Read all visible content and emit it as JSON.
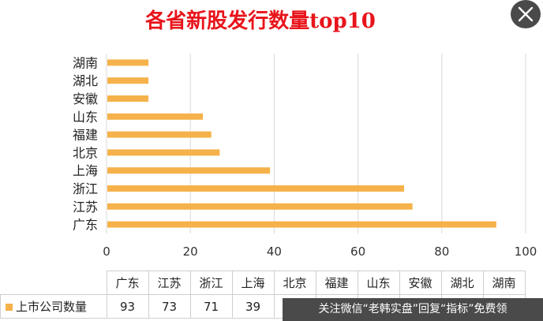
{
  "chart_data": {
    "type": "bar",
    "orientation": "horizontal",
    "title": "各省新股发行数量top10",
    "categories": [
      "广东",
      "江苏",
      "浙江",
      "上海",
      "北京",
      "福建",
      "山东",
      "安徽",
      "湖北",
      "湖南"
    ],
    "series": [
      {
        "name": "上市公司数量",
        "values": [
          93,
          73,
          71,
          39,
          27,
          25,
          23,
          10,
          10,
          10
        ]
      }
    ],
    "xlim": [
      0,
      100
    ],
    "x_ticks": [
      "0",
      "20",
      "40",
      "60",
      "80",
      "100"
    ],
    "grid": true,
    "data_table": true,
    "visible_table_values": [
      "93",
      "73",
      "71",
      "39"
    ],
    "colors": {
      "bar": "#f5b24a",
      "title": "#e8141b",
      "grid": "#d9d9d9"
    }
  },
  "overlay": {
    "close_icon": "close-icon",
    "watermark_text": "关注微信“老韩实盘”回复“指标”免费领"
  }
}
